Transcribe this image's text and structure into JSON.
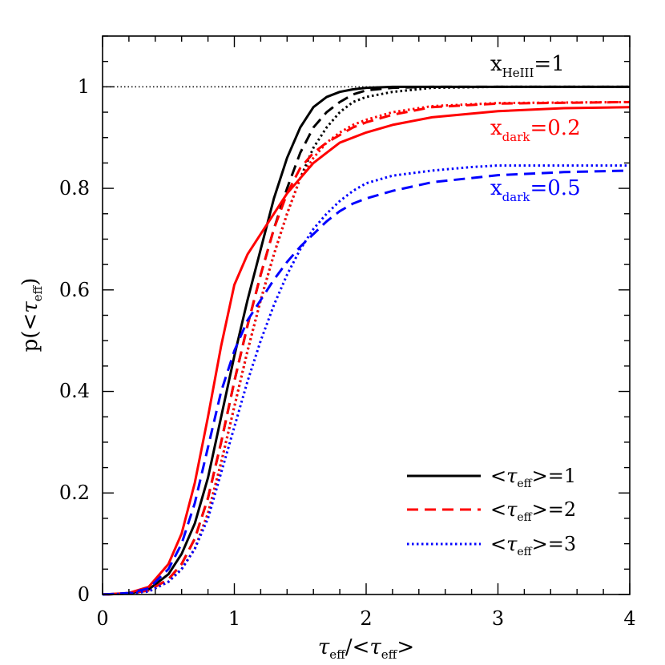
{
  "chart_data": {
    "type": "line",
    "xlabel": "τeff/<τeff>",
    "xlabel_parts": {
      "tau": "τ",
      "sub": "eff",
      "slash": "/<",
      "tau2": "τ",
      "sub2": "eff",
      "close": ">"
    },
    "ylabel": "p(<τeff)",
    "ylabel_parts": {
      "p": "p(<",
      "tau": "τ",
      "sub": "eff",
      "close": ")"
    },
    "xlim": [
      0,
      4
    ],
    "ylim": [
      0,
      1.1
    ],
    "xticks": [
      "0",
      "1",
      "2",
      "3",
      "4"
    ],
    "yticks": [
      "0",
      "0.2",
      "0.4",
      "0.6",
      "0.8",
      "1"
    ],
    "reference_line": {
      "y": 1,
      "style": "dotted",
      "color": "#000000"
    },
    "annotations": [
      {
        "id": "helll",
        "main": "x",
        "sub": "HeIII",
        "rest": "=1",
        "color": "#000000"
      },
      {
        "id": "dark02",
        "main": "x",
        "sub": "dark",
        "rest": "=0.2",
        "color": "#ff0000"
      },
      {
        "id": "dark05",
        "main": "x",
        "sub": "dark",
        "rest": "=0.5",
        "color": "#0000ff"
      }
    ],
    "legend": {
      "position": "bottom-right",
      "entries": [
        {
          "pre": "<",
          "tau": "τ",
          "sub": "eff",
          "post": ">=1",
          "style": "solid",
          "color": "#000000"
        },
        {
          "pre": "<",
          "tau": "τ",
          "sub": "eff",
          "post": ">=2",
          "style": "dashed",
          "color": "#ff0000"
        },
        {
          "pre": "<",
          "tau": "τ",
          "sub": "eff",
          "post": ">=3",
          "style": "dotted",
          "color": "#0000ff"
        }
      ]
    },
    "series": [
      {
        "group": "x_HeIII=1",
        "tau_mean": 1,
        "style": "solid",
        "color": "#000000",
        "x": [
          0,
          0.2,
          0.35,
          0.5,
          0.6,
          0.7,
          0.8,
          0.9,
          1.0,
          1.1,
          1.2,
          1.3,
          1.4,
          1.5,
          1.6,
          1.7,
          1.8,
          1.9,
          2.0,
          2.2,
          2.5,
          3.0,
          4.0
        ],
        "y": [
          0,
          0.002,
          0.01,
          0.04,
          0.08,
          0.14,
          0.23,
          0.35,
          0.47,
          0.58,
          0.68,
          0.78,
          0.86,
          0.92,
          0.96,
          0.98,
          0.99,
          0.995,
          0.998,
          1.0,
          1.0,
          1.0,
          1.0
        ]
      },
      {
        "group": "x_HeIII=1",
        "tau_mean": 2,
        "style": "dashed",
        "color": "#000000",
        "x": [
          0,
          0.2,
          0.35,
          0.5,
          0.6,
          0.7,
          0.8,
          0.9,
          1.0,
          1.1,
          1.2,
          1.3,
          1.4,
          1.5,
          1.6,
          1.7,
          1.8,
          1.9,
          2.0,
          2.2,
          2.5,
          3.0,
          4.0
        ],
        "y": [
          0,
          0.002,
          0.008,
          0.03,
          0.06,
          0.11,
          0.19,
          0.3,
          0.42,
          0.53,
          0.63,
          0.72,
          0.8,
          0.87,
          0.92,
          0.95,
          0.97,
          0.985,
          0.993,
          0.998,
          1.0,
          1.0,
          1.0
        ]
      },
      {
        "group": "x_HeIII=1",
        "tau_mean": 3,
        "style": "dotted",
        "color": "#000000",
        "x": [
          0,
          0.2,
          0.35,
          0.5,
          0.6,
          0.7,
          0.8,
          0.9,
          1.0,
          1.1,
          1.2,
          1.3,
          1.4,
          1.5,
          1.6,
          1.7,
          1.8,
          1.9,
          2.0,
          2.2,
          2.5,
          3.0,
          4.0
        ],
        "y": [
          0,
          0.002,
          0.006,
          0.025,
          0.05,
          0.09,
          0.16,
          0.26,
          0.37,
          0.48,
          0.58,
          0.67,
          0.75,
          0.82,
          0.88,
          0.92,
          0.95,
          0.97,
          0.98,
          0.99,
          0.998,
          1.0,
          1.0
        ]
      },
      {
        "group": "x_dark=0.2",
        "tau_mean": 1,
        "style": "solid",
        "color": "#ff0000",
        "x": [
          0,
          0.2,
          0.35,
          0.5,
          0.6,
          0.7,
          0.8,
          0.9,
          1.0,
          1.1,
          1.2,
          1.3,
          1.4,
          1.5,
          1.6,
          1.7,
          1.8,
          2.0,
          2.2,
          2.5,
          3.0,
          3.5,
          4.0
        ],
        "y": [
          0,
          0.003,
          0.015,
          0.06,
          0.12,
          0.22,
          0.35,
          0.49,
          0.61,
          0.67,
          0.71,
          0.75,
          0.79,
          0.82,
          0.85,
          0.87,
          0.89,
          0.91,
          0.925,
          0.94,
          0.952,
          0.958,
          0.96
        ]
      },
      {
        "group": "x_dark=0.2",
        "tau_mean": 2,
        "style": "dashed",
        "color": "#ff0000",
        "x": [
          0,
          0.2,
          0.35,
          0.5,
          0.6,
          0.7,
          0.8,
          0.9,
          1.0,
          1.1,
          1.2,
          1.3,
          1.4,
          1.5,
          1.6,
          1.7,
          1.8,
          1.9,
          2.0,
          2.2,
          2.5,
          3.0,
          4.0
        ],
        "y": [
          0,
          0.002,
          0.008,
          0.03,
          0.06,
          0.11,
          0.19,
          0.3,
          0.42,
          0.53,
          0.63,
          0.72,
          0.79,
          0.84,
          0.87,
          0.89,
          0.905,
          0.92,
          0.93,
          0.945,
          0.96,
          0.967,
          0.97
        ]
      },
      {
        "group": "x_dark=0.2",
        "tau_mean": 3,
        "style": "dotted",
        "color": "#ff0000",
        "x": [
          0,
          0.2,
          0.35,
          0.5,
          0.6,
          0.7,
          0.8,
          0.9,
          1.0,
          1.1,
          1.2,
          1.3,
          1.4,
          1.5,
          1.6,
          1.7,
          1.8,
          1.9,
          2.0,
          2.2,
          2.5,
          3.0,
          4.0
        ],
        "y": [
          0,
          0.002,
          0.006,
          0.025,
          0.05,
          0.09,
          0.16,
          0.26,
          0.37,
          0.48,
          0.58,
          0.67,
          0.75,
          0.82,
          0.86,
          0.89,
          0.91,
          0.925,
          0.935,
          0.95,
          0.962,
          0.968,
          0.97
        ]
      },
      {
        "group": "x_dark=0.5",
        "tau_mean": 2,
        "style": "dashed",
        "color": "#0000ff",
        "x": [
          0,
          0.2,
          0.35,
          0.5,
          0.6,
          0.7,
          0.8,
          0.9,
          1.0,
          1.1,
          1.2,
          1.3,
          1.4,
          1.5,
          1.6,
          1.7,
          1.8,
          1.9,
          2.0,
          2.2,
          2.5,
          3.0,
          3.5,
          4.0
        ],
        "y": [
          0,
          0.003,
          0.012,
          0.05,
          0.1,
          0.18,
          0.29,
          0.4,
          0.48,
          0.54,
          0.58,
          0.62,
          0.655,
          0.685,
          0.71,
          0.735,
          0.755,
          0.77,
          0.78,
          0.795,
          0.812,
          0.826,
          0.832,
          0.835
        ]
      },
      {
        "group": "x_dark=0.5",
        "tau_mean": 3,
        "style": "dotted",
        "color": "#0000ff",
        "x": [
          0,
          0.2,
          0.35,
          0.5,
          0.6,
          0.7,
          0.8,
          0.9,
          1.0,
          1.1,
          1.2,
          1.3,
          1.4,
          1.5,
          1.6,
          1.7,
          1.8,
          1.9,
          2.0,
          2.2,
          2.5,
          2.8,
          3.0,
          4.0
        ],
        "y": [
          0,
          0.002,
          0.006,
          0.025,
          0.05,
          0.09,
          0.15,
          0.24,
          0.33,
          0.42,
          0.5,
          0.57,
          0.63,
          0.68,
          0.72,
          0.75,
          0.775,
          0.795,
          0.81,
          0.825,
          0.835,
          0.842,
          0.845,
          0.845
        ]
      }
    ]
  }
}
